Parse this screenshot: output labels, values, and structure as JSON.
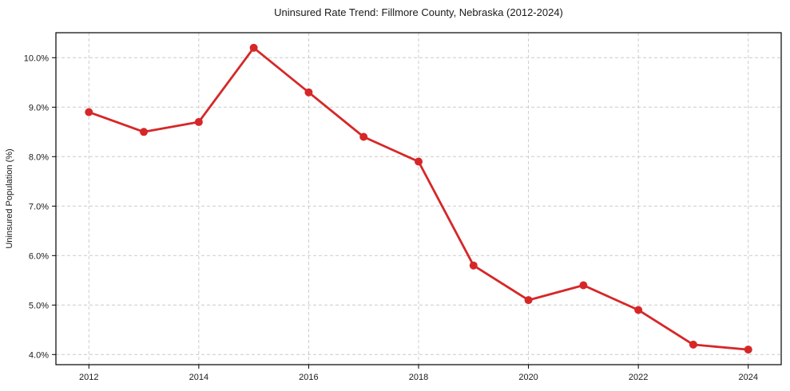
{
  "chart_data": {
    "type": "line",
    "title": "Uninsured Rate Trend: Fillmore County, Nebraska (2012-2024)",
    "xlabel": "",
    "ylabel": "Uninsured Population (%)",
    "x": [
      2012,
      2013,
      2014,
      2015,
      2016,
      2017,
      2018,
      2019,
      2020,
      2021,
      2022,
      2023,
      2024
    ],
    "values": [
      8.9,
      8.5,
      8.7,
      10.2,
      9.3,
      8.4,
      7.9,
      5.8,
      5.1,
      5.4,
      4.9,
      4.2,
      4.1
    ],
    "xticks": [
      2012,
      2014,
      2016,
      2018,
      2020,
      2022,
      2024
    ],
    "xtick_labels": [
      "2012",
      "2014",
      "2016",
      "2018",
      "2020",
      "2022",
      "2024"
    ],
    "yticks": [
      4,
      5,
      6,
      7,
      8,
      9,
      10
    ],
    "ytick_labels": [
      "4.0%",
      "5.0%",
      "6.0%",
      "7.0%",
      "8.0%",
      "9.0%",
      "10.0%"
    ],
    "xlim": [
      2011.4,
      2024.6
    ],
    "ylim": [
      3.795,
      10.505
    ],
    "grid": true,
    "legend_position": "none",
    "line_color": "#d62728",
    "marker": "circle",
    "marker_radius": 5,
    "line_width": 2.8,
    "grid_color": "#cccccc",
    "axis_color": "#000000",
    "text_color": "#1a1a1a",
    "background": "#ffffff"
  }
}
